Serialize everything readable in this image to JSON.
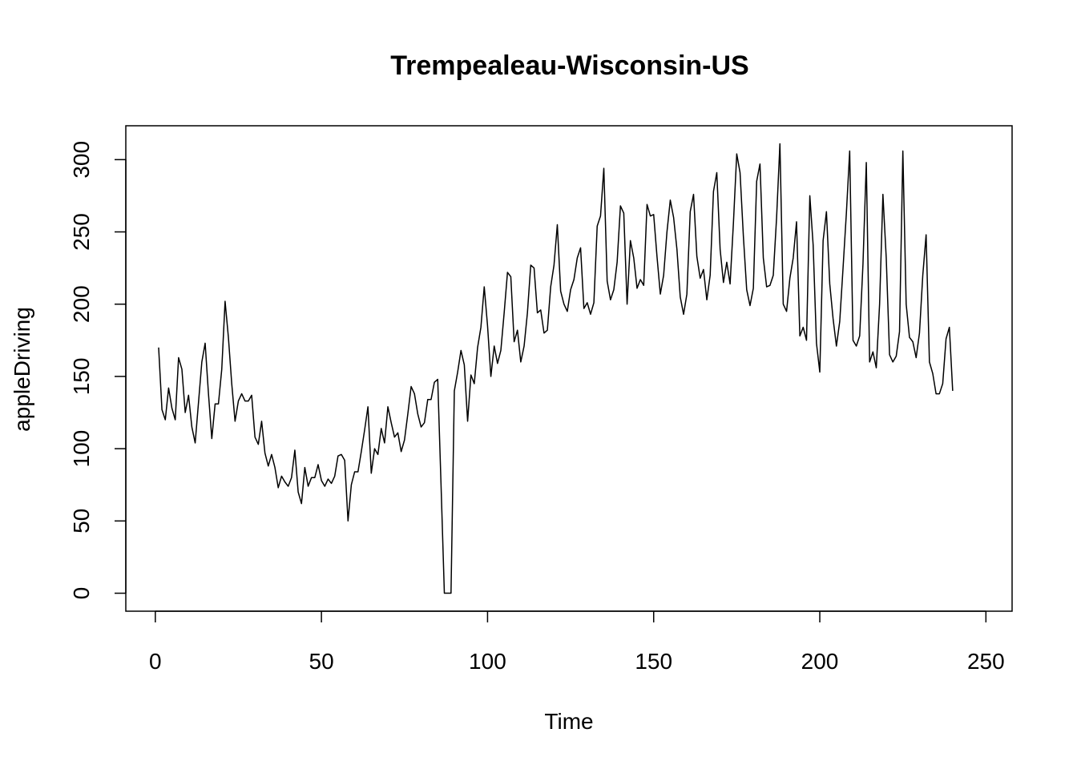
{
  "chart_data": {
    "type": "line",
    "title": "Trempealeau-Wisconsin-US",
    "xlabel": "Time",
    "ylabel": "appleDriving",
    "xlim": [
      1,
      248
    ],
    "ylim": [
      0,
      311
    ],
    "x_ticks": [
      0,
      50,
      100,
      150,
      200,
      250
    ],
    "y_ticks": [
      0,
      50,
      100,
      150,
      200,
      250,
      300
    ],
    "grid": false,
    "legend": "none",
    "line_color": "#000000",
    "series": [
      {
        "x_start": 1,
        "x_step": 1,
        "values": [
          170,
          127,
          120,
          142,
          128,
          120,
          163,
          155,
          125,
          137,
          115,
          104,
          132,
          160,
          173,
          138,
          107,
          131,
          131,
          155,
          202,
          177,
          145,
          119,
          133,
          138,
          133,
          133,
          137,
          108,
          103,
          119,
          97,
          88,
          96,
          87,
          73,
          81,
          77,
          74,
          80,
          99,
          70,
          62,
          87,
          74,
          80,
          80,
          89,
          78,
          74,
          79,
          76,
          81,
          95,
          96,
          92,
          50,
          75,
          84,
          84,
          98,
          113,
          129,
          83,
          100,
          96,
          114,
          104,
          129,
          118,
          108,
          111,
          98,
          106,
          124,
          143,
          138,
          124,
          115,
          118,
          134,
          134,
          146,
          148,
          75,
          0,
          0,
          0,
          140,
          153,
          168,
          158,
          119,
          151,
          145,
          170,
          184,
          212,
          185,
          150,
          171,
          159,
          168,
          194,
          222,
          219,
          174,
          182,
          160,
          171,
          194,
          227,
          225,
          194,
          196,
          180,
          182,
          212,
          227,
          255,
          209,
          200,
          195,
          210,
          217,
          232,
          239,
          197,
          201,
          193,
          201,
          254,
          261,
          294,
          216,
          203,
          210,
          229,
          268,
          263,
          200,
          244,
          232,
          211,
          217,
          213,
          269,
          261,
          262,
          233,
          207,
          220,
          250,
          272,
          260,
          238,
          205,
          193,
          207,
          264,
          276,
          233,
          218,
          224,
          203,
          220,
          278,
          291,
          238,
          215,
          229,
          214,
          256,
          304,
          291,
          247,
          210,
          199,
          211,
          285,
          297,
          232,
          212,
          213,
          220,
          260,
          311,
          200,
          195,
          218,
          232,
          257,
          178,
          184,
          175,
          275,
          241,
          173,
          153,
          244,
          264,
          214,
          190,
          171,
          188,
          225,
          263,
          306,
          175,
          171,
          178,
          228,
          298,
          160,
          167,
          156,
          200,
          276,
          232,
          165,
          160,
          164,
          181,
          306,
          200,
          177,
          174,
          163,
          180,
          220,
          248,
          160,
          152,
          138,
          138,
          145,
          176,
          184,
          140
        ]
      }
    ]
  }
}
